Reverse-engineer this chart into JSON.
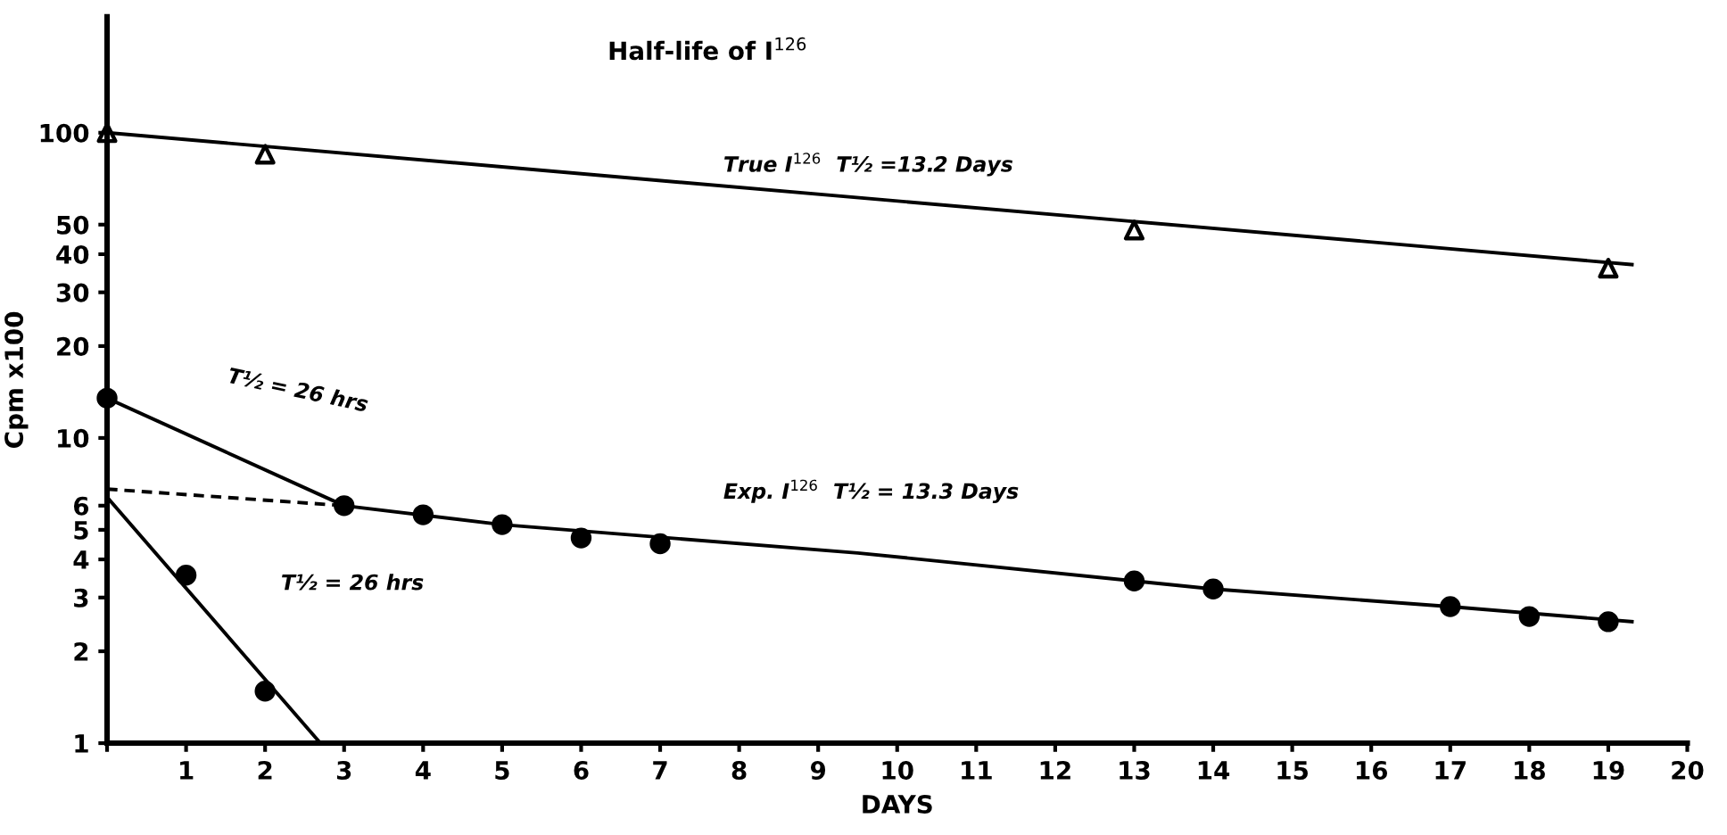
{
  "chart_data": {
    "type": "scatter",
    "title": "Half-life of I$^{126}$",
    "xlabel": "DAYS",
    "ylabel": "Cpm x100",
    "log": "y",
    "xlim": [
      0,
      20
    ],
    "xticks": [
      {
        "value": 0,
        "label": null
      },
      1,
      2,
      3,
      4,
      5,
      6,
      7,
      8,
      9,
      10,
      11,
      12,
      13,
      14,
      15,
      16,
      17,
      18,
      19,
      20
    ],
    "ylim": [
      1,
      240
    ],
    "yticks": [
      1,
      2,
      3,
      4,
      5,
      6,
      10,
      20,
      30,
      40,
      50,
      100
    ],
    "grid": false,
    "series": [
      {
        "type": "line",
        "color": "#000000",
        "marker": "none",
        "line_style": "solid",
        "x": [
          0,
          19.3
        ],
        "values": [
          100,
          37
        ]
      },
      {
        "color": "#000000",
        "marker": "triangle",
        "x": [
          0,
          2,
          13,
          19
        ],
        "values": [
          100,
          85,
          48,
          36
        ]
      },
      {
        "type": "line",
        "color": "#000000",
        "marker": "none",
        "line_style": "solid",
        "x": [
          0,
          3
        ],
        "values": [
          13.5,
          6.0
        ]
      },
      {
        "type": "line",
        "color": "#000000",
        "marker": "none",
        "line_style": "dashed",
        "x": [
          0,
          3
        ],
        "values": [
          6.8,
          6.0
        ]
      },
      {
        "type": "line",
        "color": "#000000",
        "marker": "none",
        "line_style": "solid",
        "x": [
          0,
          2.7
        ],
        "values": [
          6.4,
          1
        ]
      },
      {
        "type": "line",
        "color": "#000000",
        "marker": "none",
        "line_style": "solid",
        "x": [
          3,
          5,
          9.5,
          13,
          14,
          17,
          19.3
        ],
        "values": [
          6.0,
          5.2,
          4.2,
          3.4,
          3.2,
          2.8,
          2.5
        ]
      },
      {
        "color": "#000000",
        "marker": "circle",
        "x": [
          0,
          1,
          2,
          3,
          4,
          5,
          6,
          7,
          13,
          14,
          17,
          18,
          19
        ],
        "values": [
          13.5,
          3.55,
          1.48,
          6.0,
          5.6,
          5.2,
          4.7,
          4.5,
          3.4,
          3.2,
          2.8,
          2.6,
          2.5
        ]
      }
    ],
    "annotations": [
      "True I$^{126}$  T½ =13.2 Days",
      "Exp. I$^{126}$  T½ = 13.3 Days",
      "T½ = 26 hrs",
      "T½ = 26 hrs"
    ]
  }
}
